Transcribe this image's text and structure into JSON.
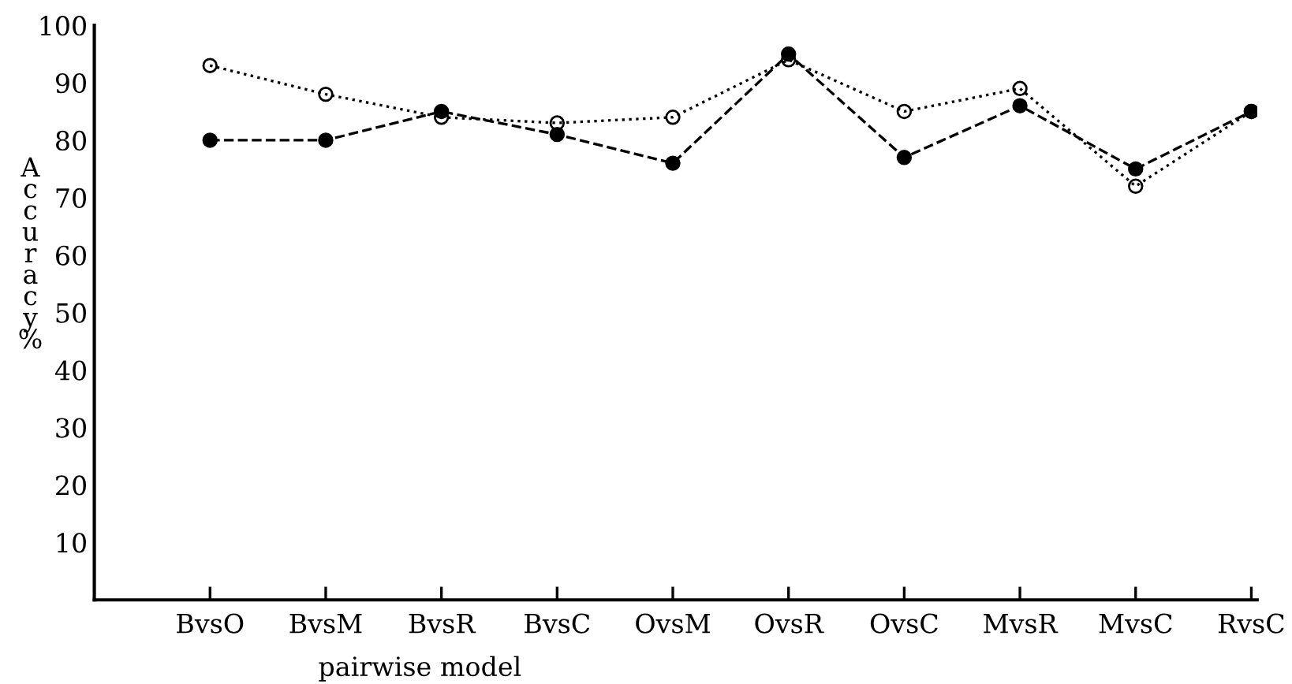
{
  "chart_data": {
    "type": "line",
    "xlabel": "pairwise model",
    "ylabel": "Accuracy %",
    "categories": [
      "BvsO",
      "BvsM",
      "BvsR",
      "BvsC",
      "OvsM",
      "OvsR",
      "OvsC",
      "MvsR",
      "MvsC",
      "RvsC"
    ],
    "series": [
      {
        "color": "#000000",
        "marker": "circle",
        "line_style": "dotted",
        "values": [
          93,
          88,
          84,
          83,
          84,
          94,
          85,
          89,
          72,
          85
        ]
      },
      {
        "color": "#000000",
        "marker": "circle",
        "line_style": "dashed",
        "values": [
          80,
          80,
          85,
          81,
          76,
          95,
          77,
          86,
          75,
          85
        ]
      }
    ],
    "ylim": [
      0,
      100
    ],
    "yticks": [
      10,
      20,
      30,
      40,
      50,
      60,
      70,
      80,
      90,
      100
    ],
    "grid": false,
    "legend": false
  }
}
